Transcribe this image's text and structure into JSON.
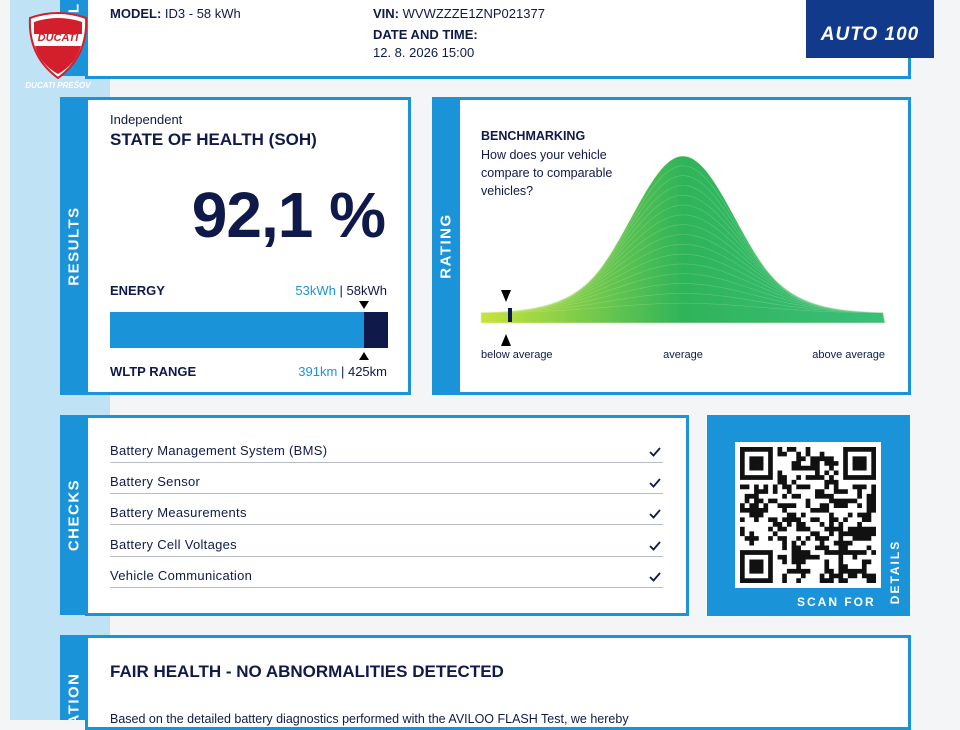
{
  "header": {
    "brand_logo": "DUCATI",
    "dealer": "DUCATI PREŠOV",
    "section_label": "CL",
    "model_label": "MODEL:",
    "model": "ID3 - 58 kWh",
    "vin_label": "VIN:",
    "vin": "WVWZZZE1ZNP021377",
    "date_label": "DATE AND TIME:",
    "date": "12. 8. 2026 15:00",
    "partner_logo": "AUTO 100"
  },
  "results": {
    "section_label": "RESULTS",
    "eyebrow": "Independent",
    "title": "STATE OF HEALTH (SOH)",
    "soh": "92,1 %",
    "energy_label": "ENERGY",
    "energy_current": "53kWh",
    "separator": "|",
    "energy_nominal": "58kWh",
    "range_label": "WLTP RANGE",
    "range_current": "391km",
    "range_nominal": "425km"
  },
  "rating": {
    "section_label": "RATING",
    "title": "BENCHMARKING",
    "question": [
      "How does your vehicle",
      "compare to comparable",
      "vehicles?"
    ],
    "scale": [
      "below average",
      "average",
      "above average"
    ]
  },
  "checks": {
    "section_label": "CHECKS",
    "items": [
      "Battery Management System (BMS)",
      "Battery Sensor",
      "Battery Measurements",
      "Battery Cell Voltages",
      "Vehicle Communication"
    ]
  },
  "qr": {
    "caption": "SCAN FOR",
    "caption_vertical": "DETAILS"
  },
  "summary": {
    "section_label": "ATION",
    "title": "FAIR HEALTH - NO ABNORMALITIES DETECTED",
    "text": "Based on the detailed battery diagnostics performed with the AVILOO FLASH Test, we hereby"
  }
}
